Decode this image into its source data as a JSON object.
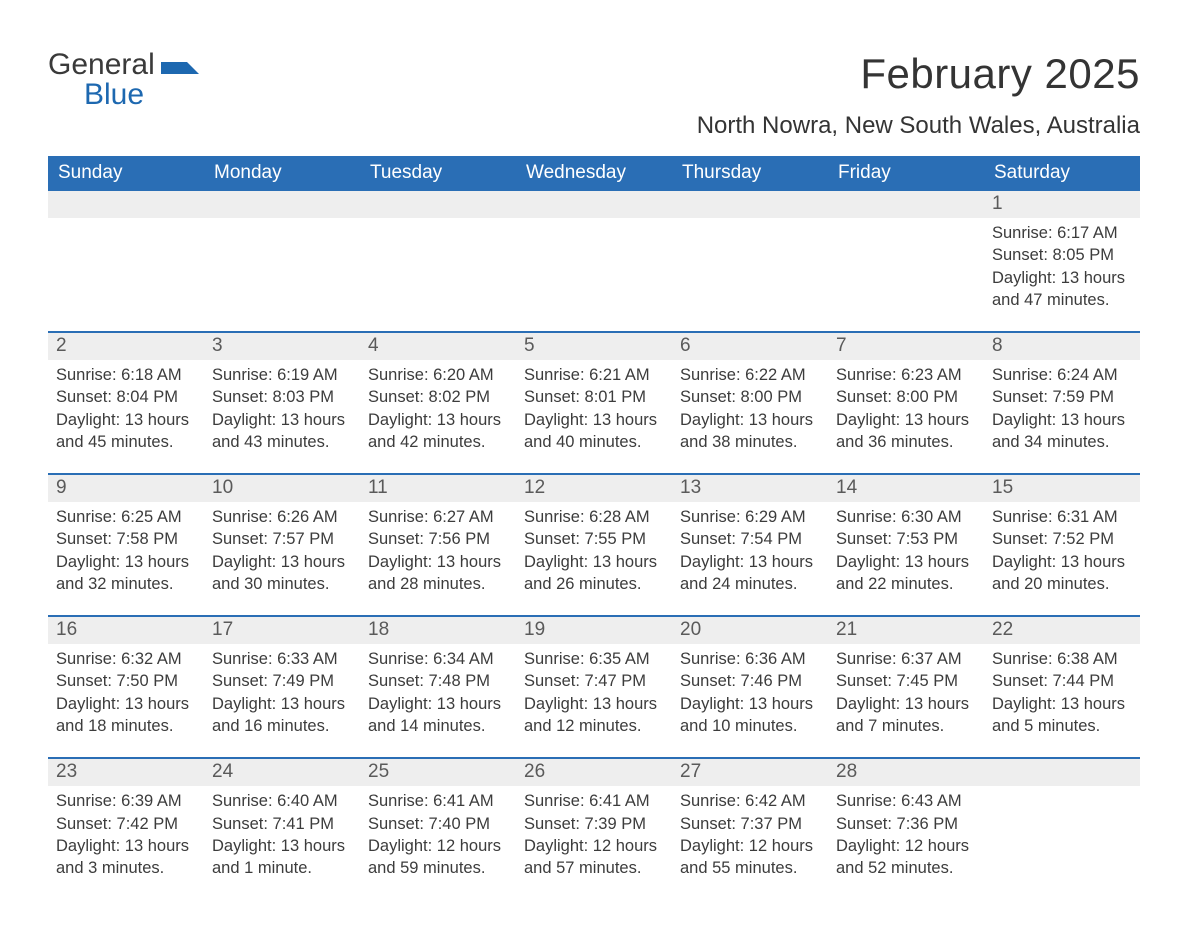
{
  "logo": {
    "word1": "General",
    "word2": "Blue"
  },
  "title": "February 2025",
  "location": "North Nowra, New South Wales, Australia",
  "colors": {
    "header_bg": "#2a6eb5",
    "header_fg": "#ffffff",
    "daynum_bg": "#eeeeee",
    "row_divider": "#2a6eb5",
    "body_text": "#3c3c3c",
    "logo_blue": "#1d68b0"
  },
  "columns": [
    "Sunday",
    "Monday",
    "Tuesday",
    "Wednesday",
    "Thursday",
    "Friday",
    "Saturday"
  ],
  "weeks": [
    [
      null,
      null,
      null,
      null,
      null,
      null,
      {
        "n": "1",
        "sunrise": "6:17 AM",
        "sunset": "8:05 PM",
        "daylight": "13 hours and 47 minutes."
      }
    ],
    [
      {
        "n": "2",
        "sunrise": "6:18 AM",
        "sunset": "8:04 PM",
        "daylight": "13 hours and 45 minutes."
      },
      {
        "n": "3",
        "sunrise": "6:19 AM",
        "sunset": "8:03 PM",
        "daylight": "13 hours and 43 minutes."
      },
      {
        "n": "4",
        "sunrise": "6:20 AM",
        "sunset": "8:02 PM",
        "daylight": "13 hours and 42 minutes."
      },
      {
        "n": "5",
        "sunrise": "6:21 AM",
        "sunset": "8:01 PM",
        "daylight": "13 hours and 40 minutes."
      },
      {
        "n": "6",
        "sunrise": "6:22 AM",
        "sunset": "8:00 PM",
        "daylight": "13 hours and 38 minutes."
      },
      {
        "n": "7",
        "sunrise": "6:23 AM",
        "sunset": "8:00 PM",
        "daylight": "13 hours and 36 minutes."
      },
      {
        "n": "8",
        "sunrise": "6:24 AM",
        "sunset": "7:59 PM",
        "daylight": "13 hours and 34 minutes."
      }
    ],
    [
      {
        "n": "9",
        "sunrise": "6:25 AM",
        "sunset": "7:58 PM",
        "daylight": "13 hours and 32 minutes."
      },
      {
        "n": "10",
        "sunrise": "6:26 AM",
        "sunset": "7:57 PM",
        "daylight": "13 hours and 30 minutes."
      },
      {
        "n": "11",
        "sunrise": "6:27 AM",
        "sunset": "7:56 PM",
        "daylight": "13 hours and 28 minutes."
      },
      {
        "n": "12",
        "sunrise": "6:28 AM",
        "sunset": "7:55 PM",
        "daylight": "13 hours and 26 minutes."
      },
      {
        "n": "13",
        "sunrise": "6:29 AM",
        "sunset": "7:54 PM",
        "daylight": "13 hours and 24 minutes."
      },
      {
        "n": "14",
        "sunrise": "6:30 AM",
        "sunset": "7:53 PM",
        "daylight": "13 hours and 22 minutes."
      },
      {
        "n": "15",
        "sunrise": "6:31 AM",
        "sunset": "7:52 PM",
        "daylight": "13 hours and 20 minutes."
      }
    ],
    [
      {
        "n": "16",
        "sunrise": "6:32 AM",
        "sunset": "7:50 PM",
        "daylight": "13 hours and 18 minutes."
      },
      {
        "n": "17",
        "sunrise": "6:33 AM",
        "sunset": "7:49 PM",
        "daylight": "13 hours and 16 minutes."
      },
      {
        "n": "18",
        "sunrise": "6:34 AM",
        "sunset": "7:48 PM",
        "daylight": "13 hours and 14 minutes."
      },
      {
        "n": "19",
        "sunrise": "6:35 AM",
        "sunset": "7:47 PM",
        "daylight": "13 hours and 12 minutes."
      },
      {
        "n": "20",
        "sunrise": "6:36 AM",
        "sunset": "7:46 PM",
        "daylight": "13 hours and 10 minutes."
      },
      {
        "n": "21",
        "sunrise": "6:37 AM",
        "sunset": "7:45 PM",
        "daylight": "13 hours and 7 minutes."
      },
      {
        "n": "22",
        "sunrise": "6:38 AM",
        "sunset": "7:44 PM",
        "daylight": "13 hours and 5 minutes."
      }
    ],
    [
      {
        "n": "23",
        "sunrise": "6:39 AM",
        "sunset": "7:42 PM",
        "daylight": "13 hours and 3 minutes."
      },
      {
        "n": "24",
        "sunrise": "6:40 AM",
        "sunset": "7:41 PM",
        "daylight": "13 hours and 1 minute."
      },
      {
        "n": "25",
        "sunrise": "6:41 AM",
        "sunset": "7:40 PM",
        "daylight": "12 hours and 59 minutes."
      },
      {
        "n": "26",
        "sunrise": "6:41 AM",
        "sunset": "7:39 PM",
        "daylight": "12 hours and 57 minutes."
      },
      {
        "n": "27",
        "sunrise": "6:42 AM",
        "sunset": "7:37 PM",
        "daylight": "12 hours and 55 minutes."
      },
      {
        "n": "28",
        "sunrise": "6:43 AM",
        "sunset": "7:36 PM",
        "daylight": "12 hours and 52 minutes."
      },
      null
    ]
  ],
  "labels": {
    "sunrise": "Sunrise:",
    "sunset": "Sunset:",
    "daylight": "Daylight:"
  }
}
